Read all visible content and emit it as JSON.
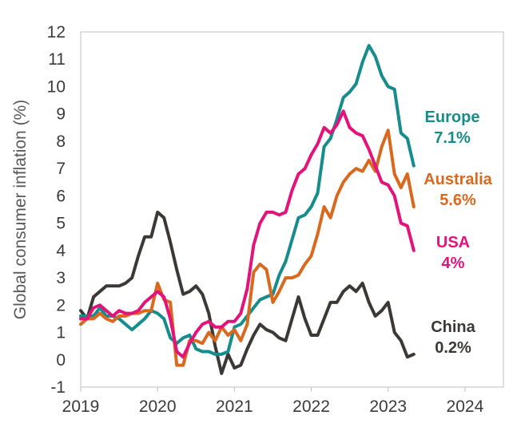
{
  "chart_data": {
    "type": "line",
    "title": "",
    "xlabel": "",
    "ylabel": "Global consumer inflation (%)",
    "xlim": [
      2019.0,
      2024.5
    ],
    "ylim": [
      -1,
      12
    ],
    "x_ticks": [
      2019,
      2020,
      2021,
      2022,
      2023,
      2024
    ],
    "x_tick_labels": [
      "2019",
      "2020",
      "2021",
      "2022",
      "2023",
      "2024"
    ],
    "y_ticks": [
      -1,
      0,
      1,
      2,
      3,
      4,
      5,
      6,
      7,
      8,
      9,
      10,
      11,
      12
    ],
    "y_tick_labels": [
      "-1",
      "0",
      "1",
      "2",
      "3",
      "4",
      "5",
      "6",
      "7",
      "8",
      "9",
      "10",
      "11",
      "12"
    ],
    "grid": false,
    "legend": "none",
    "series": [
      {
        "name": "China",
        "color": "#3b3835",
        "label_lines": [
          "China",
          "0.2%"
        ],
        "x": [
          2019.0,
          2019.083,
          2019.167,
          2019.25,
          2019.333,
          2019.417,
          2019.5,
          2019.583,
          2019.667,
          2019.75,
          2019.833,
          2019.917,
          2020.0,
          2020.083,
          2020.167,
          2020.25,
          2020.333,
          2020.417,
          2020.5,
          2020.583,
          2020.667,
          2020.75,
          2020.833,
          2020.917,
          2021.0,
          2021.083,
          2021.167,
          2021.25,
          2021.333,
          2021.417,
          2021.5,
          2021.583,
          2021.667,
          2021.75,
          2021.833,
          2021.917,
          2022.0,
          2022.083,
          2022.167,
          2022.25,
          2022.333,
          2022.417,
          2022.5,
          2022.583,
          2022.667,
          2022.75,
          2022.833,
          2022.917,
          2023.0,
          2023.083,
          2023.167,
          2023.25,
          2023.333
        ],
        "y": [
          1.8,
          1.5,
          2.3,
          2.5,
          2.7,
          2.7,
          2.7,
          2.8,
          3.0,
          3.8,
          4.5,
          4.5,
          5.4,
          5.2,
          4.3,
          3.3,
          2.4,
          2.5,
          2.7,
          2.4,
          1.7,
          0.5,
          -0.5,
          0.2,
          -0.3,
          -0.2,
          0.4,
          0.9,
          1.3,
          1.1,
          1.0,
          0.8,
          0.7,
          1.5,
          2.3,
          1.5,
          0.9,
          0.9,
          1.5,
          2.1,
          2.1,
          2.5,
          2.7,
          2.5,
          2.8,
          2.1,
          1.6,
          1.8,
          2.1,
          1.0,
          0.7,
          0.1,
          0.2
        ]
      },
      {
        "name": "Europe",
        "color": "#168c8c",
        "label_lines": [
          "Europe",
          "7.1%"
        ],
        "x": [
          2019.0,
          2019.083,
          2019.167,
          2019.25,
          2019.333,
          2019.417,
          2019.5,
          2019.583,
          2019.667,
          2019.75,
          2019.833,
          2019.917,
          2020.0,
          2020.083,
          2020.167,
          2020.25,
          2020.333,
          2020.417,
          2020.5,
          2020.583,
          2020.667,
          2020.75,
          2020.833,
          2020.917,
          2021.0,
          2021.083,
          2021.167,
          2021.25,
          2021.333,
          2021.417,
          2021.5,
          2021.583,
          2021.667,
          2021.75,
          2021.833,
          2021.917,
          2022.0,
          2022.083,
          2022.167,
          2022.25,
          2022.333,
          2022.417,
          2022.5,
          2022.583,
          2022.667,
          2022.75,
          2022.833,
          2022.917,
          2023.0,
          2023.083,
          2023.167,
          2023.25,
          2023.333
        ],
        "y": [
          1.6,
          1.6,
          1.6,
          1.9,
          1.6,
          1.6,
          1.5,
          1.3,
          1.1,
          1.3,
          1.5,
          1.8,
          1.7,
          1.5,
          0.8,
          0.6,
          0.8,
          0.9,
          0.4,
          0.3,
          0.3,
          0.2,
          0.2,
          0.3,
          1.2,
          1.3,
          1.6,
          1.9,
          2.2,
          2.3,
          2.4,
          3.1,
          3.6,
          4.4,
          5.2,
          5.3,
          5.6,
          6.1,
          7.8,
          8.1,
          8.8,
          9.6,
          9.8,
          10.1,
          10.9,
          11.5,
          11.1,
          10.4,
          10.0,
          9.9,
          8.3,
          8.1,
          7.1
        ]
      },
      {
        "name": "Australia",
        "color": "#d8691f",
        "label_lines": [
          "Australia",
          "5.6%"
        ],
        "x": [
          2019.0,
          2019.083,
          2019.167,
          2019.25,
          2019.333,
          2019.417,
          2019.5,
          2019.583,
          2019.667,
          2019.75,
          2019.833,
          2019.917,
          2020.0,
          2020.083,
          2020.167,
          2020.25,
          2020.333,
          2020.417,
          2020.5,
          2020.583,
          2020.667,
          2020.75,
          2020.833,
          2020.917,
          2021.0,
          2021.083,
          2021.167,
          2021.25,
          2021.333,
          2021.417,
          2021.5,
          2021.583,
          2021.667,
          2021.75,
          2021.833,
          2021.917,
          2022.0,
          2022.083,
          2022.167,
          2022.25,
          2022.333,
          2022.417,
          2022.5,
          2022.583,
          2022.667,
          2022.75,
          2022.833,
          2022.917,
          2023.0,
          2023.083,
          2023.167,
          2023.25,
          2023.333
        ],
        "y": [
          1.3,
          1.5,
          1.5,
          1.7,
          1.5,
          1.4,
          1.6,
          1.6,
          1.7,
          1.7,
          1.8,
          1.8,
          2.8,
          2.2,
          2.1,
          -0.2,
          -0.2,
          0.7,
          0.7,
          0.6,
          1.0,
          0.7,
          1.2,
          0.9,
          1.1,
          0.7,
          1.3,
          3.2,
          3.5,
          3.3,
          2.1,
          2.5,
          3.0,
          3.0,
          3.1,
          3.5,
          3.8,
          4.6,
          5.6,
          5.2,
          6.0,
          6.5,
          6.8,
          7.0,
          6.9,
          7.3,
          6.9,
          7.8,
          8.4,
          6.8,
          6.3,
          6.8,
          5.6
        ]
      },
      {
        "name": "USA",
        "color": "#e3137b",
        "label_lines": [
          "USA",
          "4%"
        ],
        "x": [
          2019.0,
          2019.083,
          2019.167,
          2019.25,
          2019.333,
          2019.417,
          2019.5,
          2019.583,
          2019.667,
          2019.75,
          2019.833,
          2019.917,
          2020.0,
          2020.083,
          2020.167,
          2020.25,
          2020.333,
          2020.417,
          2020.5,
          2020.583,
          2020.667,
          2020.75,
          2020.833,
          2020.917,
          2021.0,
          2021.083,
          2021.167,
          2021.25,
          2021.333,
          2021.417,
          2021.5,
          2021.583,
          2021.667,
          2021.75,
          2021.833,
          2021.917,
          2022.0,
          2022.083,
          2022.167,
          2022.25,
          2022.333,
          2022.417,
          2022.5,
          2022.583,
          2022.667,
          2022.75,
          2022.833,
          2022.917,
          2023.0,
          2023.083,
          2023.167,
          2023.25,
          2023.333
        ],
        "y": [
          1.5,
          1.5,
          1.9,
          2.0,
          1.8,
          1.6,
          1.8,
          1.7,
          1.7,
          1.8,
          2.1,
          2.3,
          2.5,
          2.3,
          1.5,
          0.3,
          0.1,
          0.6,
          1.0,
          1.3,
          1.4,
          1.2,
          1.2,
          1.4,
          1.4,
          1.7,
          2.6,
          4.2,
          5.0,
          5.4,
          5.4,
          5.3,
          5.4,
          6.2,
          6.8,
          7.0,
          7.5,
          7.9,
          8.5,
          8.3,
          8.6,
          9.1,
          8.5,
          8.3,
          8.2,
          7.7,
          7.1,
          6.5,
          6.4,
          6.0,
          5.0,
          4.9,
          4.0
        ]
      }
    ]
  }
}
